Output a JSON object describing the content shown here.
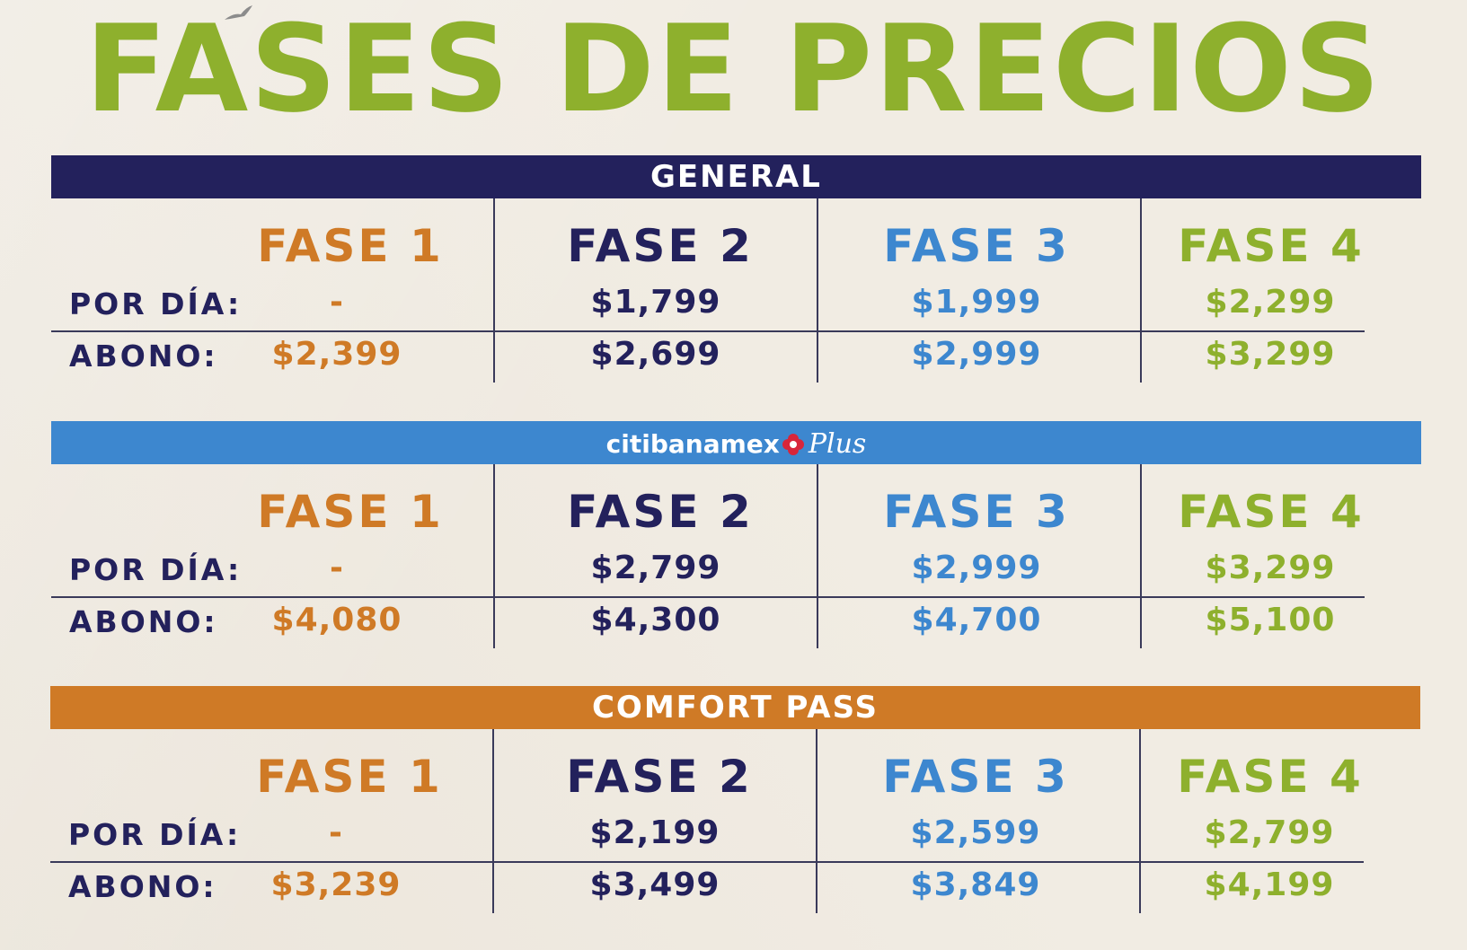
{
  "title": "FASES DE PRECIOS",
  "colors": {
    "title_green": "#8eb02d",
    "general_navy": "#23215c",
    "citi_blue": "#3d87cf",
    "comfort_orange": "#cf7a26",
    "background": "#f1ece3"
  },
  "row_labels": {
    "per_day": "POR DÍA:",
    "pass": "ABONO:"
  },
  "phases": [
    "FASE 1",
    "FASE 2",
    "FASE 3",
    "FASE 4"
  ],
  "sections": [
    {
      "banner": "GENERAL",
      "per_day": [
        "-",
        "$1,799",
        "$1,999",
        "$2,299"
      ],
      "pass": [
        "$2,399",
        "$2,699",
        "$2,999",
        "$3,299"
      ]
    },
    {
      "banner_logo_text": "citibanamex",
      "banner_logo_script": "Plus",
      "per_day": [
        "-",
        "$2,799",
        "$2,999",
        "$3,299"
      ],
      "pass": [
        "$4,080",
        "$4,300",
        "$4,700",
        "$5,100"
      ]
    },
    {
      "banner": "COMFORT PASS",
      "per_day": [
        "-",
        "$2,199",
        "$2,599",
        "$2,799"
      ],
      "pass": [
        "$3,239",
        "$3,499",
        "$3,849",
        "$4,199"
      ]
    }
  ]
}
